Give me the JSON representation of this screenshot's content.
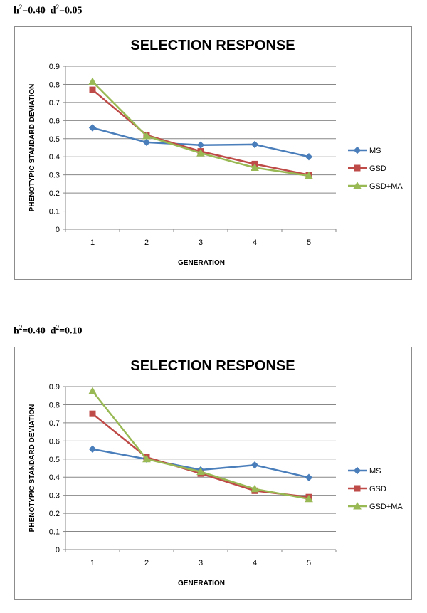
{
  "captions": [
    {
      "h_label": "h",
      "h_value": "=0.40",
      "d_label": "d",
      "d_value": "=0.05",
      "exp": "2"
    },
    {
      "h_label": "h",
      "h_value": "=0.40",
      "d_label": "d",
      "d_value": "=0.10",
      "exp": "2"
    }
  ],
  "colors": {
    "MS": "#4a7ebb",
    "GSD": "#be4b48",
    "GSD+MA": "#98b954",
    "grid": "#878787"
  },
  "chart_data": [
    {
      "type": "line",
      "title": "SELECTION RESPONSE",
      "xlabel": "GENERATION",
      "ylabel": "PHENOTYPIC STANDARD DEVIATION",
      "categories": [
        "1",
        "2",
        "3",
        "4",
        "5"
      ],
      "ylim": [
        0,
        0.9
      ],
      "yticks": [
        "0",
        "0.1",
        "0.2",
        "0.3",
        "0.4",
        "0.5",
        "0.6",
        "0.7",
        "0.8",
        "0.9"
      ],
      "grid": true,
      "legend": "right",
      "series": [
        {
          "name": "MS",
          "marker": "diamond",
          "values": [
            0.56,
            0.48,
            0.465,
            0.468,
            0.4
          ]
        },
        {
          "name": "GSD",
          "marker": "square",
          "values": [
            0.77,
            0.52,
            0.43,
            0.36,
            0.3
          ]
        },
        {
          "name": "GSD+MA",
          "marker": "triangle",
          "values": [
            0.815,
            0.515,
            0.42,
            0.34,
            0.295
          ]
        }
      ]
    },
    {
      "type": "line",
      "title": "SELECTION RESPONSE",
      "xlabel": "GENERATION",
      "ylabel": "PHENOTYPIC STANDARD DEVIATION",
      "categories": [
        "1",
        "2",
        "3",
        "4",
        "5"
      ],
      "ylim": [
        0,
        0.9
      ],
      "yticks": [
        "0",
        "0.1",
        "0.2",
        "0.3",
        "0.4",
        "0.5",
        "0.6",
        "0.7",
        "0.8",
        "0.9"
      ],
      "grid": true,
      "legend": "right",
      "series": [
        {
          "name": "MS",
          "marker": "diamond",
          "values": [
            0.555,
            0.5,
            0.44,
            0.467,
            0.398
          ]
        },
        {
          "name": "GSD",
          "marker": "square",
          "values": [
            0.75,
            0.51,
            0.42,
            0.325,
            0.29
          ]
        },
        {
          "name": "GSD+MA",
          "marker": "triangle",
          "values": [
            0.875,
            0.5,
            0.43,
            0.335,
            0.28
          ]
        }
      ]
    }
  ]
}
